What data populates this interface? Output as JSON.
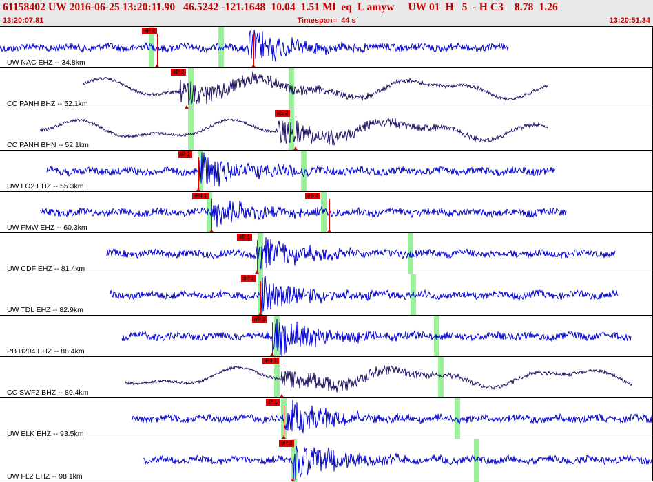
{
  "header": {
    "title": "61158402 UW 2016-06-25 13:20:11.90   46.5242 -121.1648  10.04  1.51 Ml  eq  L amyw     UW 01  H   5  - H C3    8.78  1.26",
    "start_time": "13:20:07.81",
    "timespan": "Timespan=  44 s",
    "end_time": "13:20:51.34"
  },
  "colors": {
    "trace_blue": "#0000d0",
    "trace_dark": "#1a1060",
    "pick": "#e00000",
    "window": "#90ee90",
    "header_text": "#c00000"
  },
  "traces": [
    {
      "label": "UW NAC EHZ -- 34.8km",
      "picks": [
        "eP 2"
      ],
      "style": "blue"
    },
    {
      "label": "CC PANH BHZ -- 52.1km",
      "picks": [
        "eP 2"
      ],
      "style": "dark"
    },
    {
      "label": "CC PANH BHN -- 52.1km",
      "picks": [
        "eS 2"
      ],
      "style": "dark"
    },
    {
      "label": "UW LO2 EHZ -- 55.3km",
      "picks": [
        "iP 1"
      ],
      "style": "blue"
    },
    {
      "label": "UW FMW EHZ -- 60.3km",
      "picks": [
        "iPd 1",
        "eS 2"
      ],
      "style": "blue"
    },
    {
      "label": "UW CDF EHZ -- 81.4km",
      "picks": [
        "eP 1"
      ],
      "style": "blue"
    },
    {
      "label": "UW TDL EHZ -- 82.9km",
      "picks": [
        "eP 1"
      ],
      "style": "blue"
    },
    {
      "label": "PB B204 EHZ -- 88.4km",
      "picks": [
        "eP 2"
      ],
      "style": "blue"
    },
    {
      "label": "CC SWF2 BHZ -- 89.4km",
      "picks": [
        "iPd 1"
      ],
      "style": "dark"
    },
    {
      "label": "UW ELK EHZ -- 93.5km",
      "picks": [
        "iP 1"
      ],
      "style": "blue"
    },
    {
      "label": "UW FL2 EHZ -- 98.1km",
      "picks": [
        "eP 2"
      ],
      "style": "blue"
    }
  ]
}
